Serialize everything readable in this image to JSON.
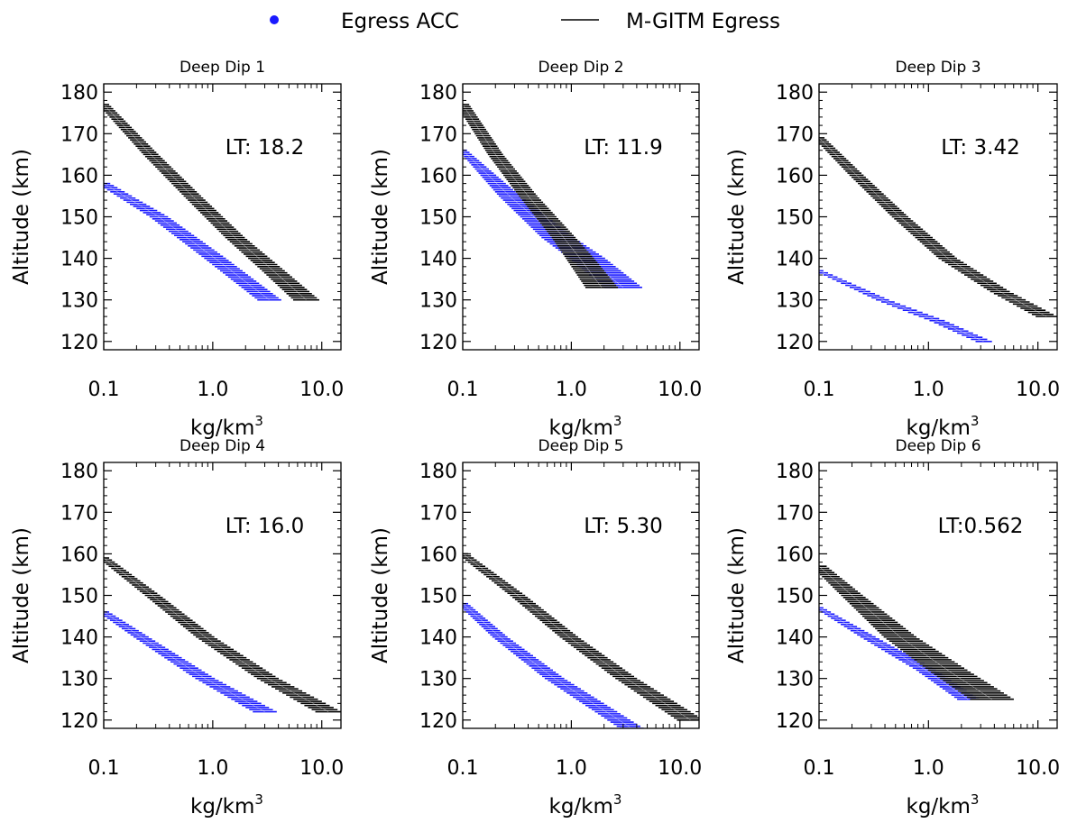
{
  "legend": {
    "position": "top-center",
    "items": [
      {
        "label": "Egress ACC",
        "marker": "dot",
        "color": "#1a1aff"
      },
      {
        "label": "M-GITM Egress",
        "marker": "line",
        "color": "#000000"
      }
    ]
  },
  "colors": {
    "acc": "#1a1aff",
    "model": "#000000",
    "axis": "#000000",
    "background": "#ffffff"
  },
  "chart_data": [
    {
      "type": "area",
      "title": "Deep Dip 1",
      "annotation": "LT: 18.2",
      "xlabel_base": "kg/km",
      "xlabel_sup": "3",
      "ylabel": "Altitude (km)",
      "xscale": "log",
      "xlim": [
        0.1,
        15
      ],
      "ylim": [
        118,
        182
      ],
      "xticks": [
        0.1,
        1.0,
        10.0
      ],
      "xtick_labels": [
        "0.1",
        "1.0",
        "10.0"
      ],
      "yticks": [
        120,
        130,
        140,
        150,
        160,
        170,
        180
      ],
      "grid": false,
      "series": [
        {
          "name": "Egress ACC",
          "color": "#1a1aff",
          "alt": [
            158,
            150,
            140,
            130
          ],
          "center": [
            0.1,
            0.32,
            1.05,
            3.3
          ],
          "width_decades": [
            0.12,
            0.17,
            0.2,
            0.22
          ]
        },
        {
          "name": "M-GITM Egress",
          "color": "#000000",
          "alt": [
            177,
            165,
            155,
            145,
            137,
            130
          ],
          "center": [
            0.1,
            0.27,
            0.65,
            1.6,
            3.6,
            7.2
          ],
          "width_decades": [
            0.1,
            0.14,
            0.16,
            0.18,
            0.21,
            0.24
          ]
        }
      ]
    },
    {
      "type": "area",
      "title": "Deep Dip 2",
      "annotation": "LT: 11.9",
      "xlabel_base": "kg/km",
      "xlabel_sup": "3",
      "ylabel": "Altitude (km)",
      "xscale": "log",
      "xlim": [
        0.1,
        15
      ],
      "ylim": [
        118,
        182
      ],
      "xticks": [
        0.1,
        1.0,
        10.0
      ],
      "xtick_labels": [
        "0.1",
        "1.0",
        "10.0"
      ],
      "yticks": [
        120,
        130,
        140,
        150,
        160,
        170,
        180
      ],
      "grid": false,
      "series": [
        {
          "name": "Egress ACC",
          "color": "#1a1aff",
          "alt": [
            166,
            155,
            145,
            140,
            133
          ],
          "center": [
            0.1,
            0.27,
            0.75,
            1.4,
            3.0
          ],
          "width_decades": [
            0.08,
            0.2,
            0.3,
            0.33,
            0.35
          ]
        },
        {
          "name": "M-GITM Egress",
          "color": "#000000",
          "alt": [
            177,
            165,
            155,
            145,
            140,
            133
          ],
          "center": [
            0.1,
            0.2,
            0.4,
            0.85,
            1.2,
            1.9
          ],
          "width_decades": [
            0.12,
            0.14,
            0.17,
            0.22,
            0.26,
            0.3
          ]
        }
      ]
    },
    {
      "type": "area",
      "title": "Deep Dip 3",
      "annotation": "LT: 3.42",
      "xlabel_base": "kg/km",
      "xlabel_sup": "3",
      "ylabel": "Altitude (km)",
      "xscale": "log",
      "xlim": [
        0.1,
        15
      ],
      "ylim": [
        118,
        182
      ],
      "xticks": [
        0.1,
        1.0,
        10.0
      ],
      "xtick_labels": [
        "0.1",
        "1.0",
        "10.0"
      ],
      "yticks": [
        120,
        130,
        140,
        150,
        160,
        170,
        180
      ],
      "grid": false,
      "series": [
        {
          "name": "Egress ACC",
          "color": "#1a1aff",
          "alt": [
            137,
            130,
            125,
            120
          ],
          "center": [
            0.1,
            0.38,
            1.2,
            3.2
          ],
          "width_decades": [
            0.08,
            0.12,
            0.14,
            0.15
          ]
        },
        {
          "name": "M-GITM Egress",
          "color": "#000000",
          "alt": [
            169,
            160,
            150,
            140,
            132,
            126
          ],
          "center": [
            0.1,
            0.22,
            0.55,
            1.5,
            4.5,
            12.0
          ],
          "width_decades": [
            0.1,
            0.13,
            0.15,
            0.17,
            0.18,
            0.2
          ]
        }
      ]
    },
    {
      "type": "area",
      "title": "Deep Dip 4",
      "annotation": "LT: 16.0",
      "xlabel_base": "kg/km",
      "xlabel_sup": "3",
      "ylabel": "Altitude (km)",
      "xscale": "log",
      "xlim": [
        0.1,
        15
      ],
      "ylim": [
        118,
        182
      ],
      "xticks": [
        0.1,
        1.0,
        10.0
      ],
      "xtick_labels": [
        "0.1",
        "1.0",
        "10.0"
      ],
      "yticks": [
        120,
        130,
        140,
        150,
        160,
        170,
        180
      ],
      "grid": false,
      "series": [
        {
          "name": "Egress ACC",
          "color": "#1a1aff",
          "alt": [
            146,
            140,
            130,
            122
          ],
          "center": [
            0.1,
            0.22,
            0.85,
            3.0
          ],
          "width_decades": [
            0.1,
            0.14,
            0.18,
            0.22
          ]
        },
        {
          "name": "M-GITM Egress",
          "color": "#000000",
          "alt": [
            159,
            150,
            140,
            130,
            122
          ],
          "center": [
            0.1,
            0.28,
            0.85,
            3.2,
            11.5
          ],
          "width_decades": [
            0.1,
            0.14,
            0.17,
            0.2,
            0.24
          ]
        }
      ]
    },
    {
      "type": "area",
      "title": "Deep Dip 5",
      "annotation": "LT: 5.30",
      "xlabel_base": "kg/km",
      "xlabel_sup": "3",
      "ylabel": "Altitude (km)",
      "xscale": "log",
      "xlim": [
        0.1,
        15
      ],
      "ylim": [
        118,
        182
      ],
      "xticks": [
        0.1,
        1.0,
        10.0
      ],
      "xtick_labels": [
        "0.1",
        "1.0",
        "10.0"
      ],
      "yticks": [
        120,
        130,
        140,
        150,
        160,
        170,
        180
      ],
      "grid": false,
      "series": [
        {
          "name": "Egress ACC",
          "color": "#1a1aff",
          "alt": [
            148,
            140,
            130,
            118
          ],
          "center": [
            0.1,
            0.22,
            0.7,
            3.6
          ],
          "width_decades": [
            0.1,
            0.14,
            0.18,
            0.22
          ]
        },
        {
          "name": "M-GITM Egress",
          "color": "#000000",
          "alt": [
            160,
            150,
            140,
            130,
            120
          ],
          "center": [
            0.1,
            0.32,
            0.95,
            3.2,
            12.5
          ],
          "width_decades": [
            0.1,
            0.14,
            0.17,
            0.2,
            0.25
          ]
        }
      ]
    },
    {
      "type": "area",
      "title": "Deep Dip 6",
      "annotation": "LT:0.562",
      "xlabel_base": "kg/km",
      "xlabel_sup": "3",
      "ylabel": "Altitude (km)",
      "xscale": "log",
      "xlim": [
        0.1,
        15
      ],
      "ylim": [
        118,
        182
      ],
      "xticks": [
        0.1,
        1.0,
        10.0
      ],
      "xtick_labels": [
        "0.1",
        "1.0",
        "10.0"
      ],
      "yticks": [
        120,
        130,
        140,
        150,
        160,
        170,
        180
      ],
      "grid": false,
      "series": [
        {
          "name": "Egress ACC",
          "color": "#1a1aff",
          "alt": [
            147,
            140,
            132,
            125
          ],
          "center": [
            0.1,
            0.28,
            0.95,
            2.3
          ],
          "width_decades": [
            0.08,
            0.14,
            0.18,
            0.2
          ]
        },
        {
          "name": "M-GITM Egress",
          "color": "#000000",
          "alt": [
            157,
            150,
            140,
            132,
            125
          ],
          "center": [
            0.1,
            0.2,
            0.55,
            1.5,
            3.8
          ],
          "width_decades": [
            0.14,
            0.2,
            0.3,
            0.36,
            0.4
          ]
        }
      ]
    }
  ]
}
